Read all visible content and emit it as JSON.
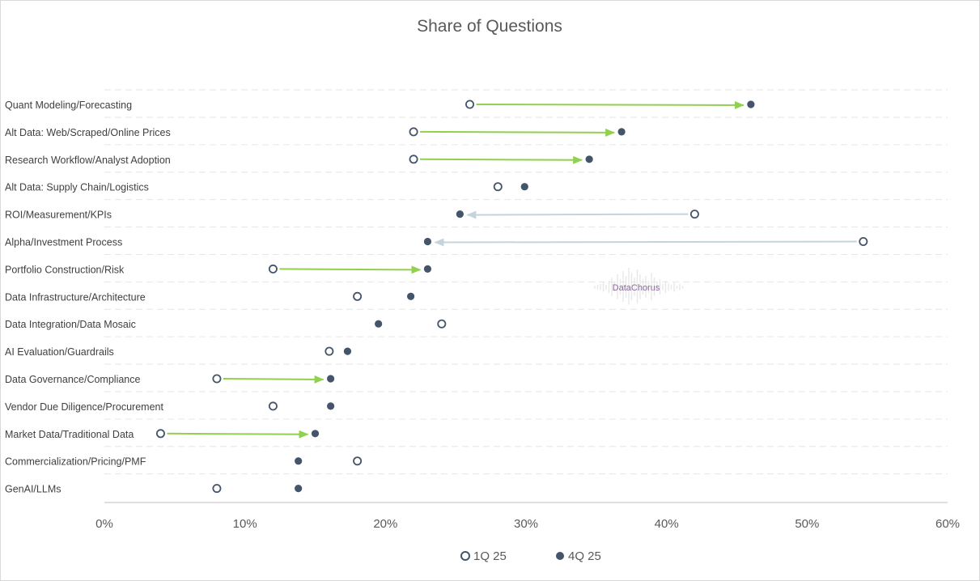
{
  "chart_data": {
    "type": "scatter",
    "title": "Share of Questions",
    "categories": [
      "Quant Modeling/Forecasting",
      "Alt Data: Web/Scraped/Online Prices",
      "Research Workflow/Analyst Adoption",
      "Alt Data: Supply Chain/Logistics",
      "ROI/Measurement/KPIs",
      "Alpha/Investment Process",
      "Portfolio Construction/Risk",
      "Data Infrastructure/Architecture",
      "Data Integration/Data Mosaic",
      "AI Evaluation/Guardrails",
      "Data Governance/Compliance",
      "Vendor Due Diligence/Procurement",
      "Market Data/Traditional Data",
      "Commercialization/Pricing/PMF",
      "GenAI/LLMs"
    ],
    "series": [
      {
        "name": "1Q 25",
        "values": [
          26,
          22,
          22,
          28,
          42,
          54,
          12,
          18,
          24,
          16,
          8,
          12,
          4,
          18,
          8
        ]
      },
      {
        "name": "4Q 25",
        "values": [
          46,
          36.8,
          34.5,
          29.9,
          25.3,
          23,
          23,
          21.8,
          19.5,
          17.3,
          16.1,
          16.1,
          15,
          13.8,
          13.8
        ]
      }
    ],
    "x_ticks": [
      "0%",
      "10%",
      "20%",
      "30%",
      "40%",
      "50%",
      "60%"
    ],
    "xlim": [
      0,
      60
    ],
    "x_unit": "%",
    "arrows": [
      {
        "category": "Quant Modeling/Forecasting",
        "direction": "up",
        "color": "#92d050"
      },
      {
        "category": "Alt Data: Web/Scraped/Online Prices",
        "direction": "up",
        "color": "#92d050"
      },
      {
        "category": "Research Workflow/Analyst Adoption",
        "direction": "up",
        "color": "#92d050"
      },
      {
        "category": "ROI/Measurement/KPIs",
        "direction": "down",
        "color": "#c5d3dc"
      },
      {
        "category": "Alpha/Investment Process",
        "direction": "down",
        "color": "#c5d3dc"
      },
      {
        "category": "Portfolio Construction/Risk",
        "direction": "up",
        "color": "#92d050"
      },
      {
        "category": "Data Governance/Compliance",
        "direction": "up",
        "color": "#92d050"
      },
      {
        "category": "Market Data/Traditional Data",
        "direction": "up",
        "color": "#92d050"
      }
    ],
    "gridlines": true,
    "grid_style": "dashed",
    "legend_position": "bottom-center",
    "colors": {
      "q1_stroke": "#44546a",
      "q4_fill": "#44546a",
      "grid": "#e6e6e6",
      "axis": "#bfbfbf"
    }
  },
  "watermark": {
    "text": "DataChorus"
  }
}
